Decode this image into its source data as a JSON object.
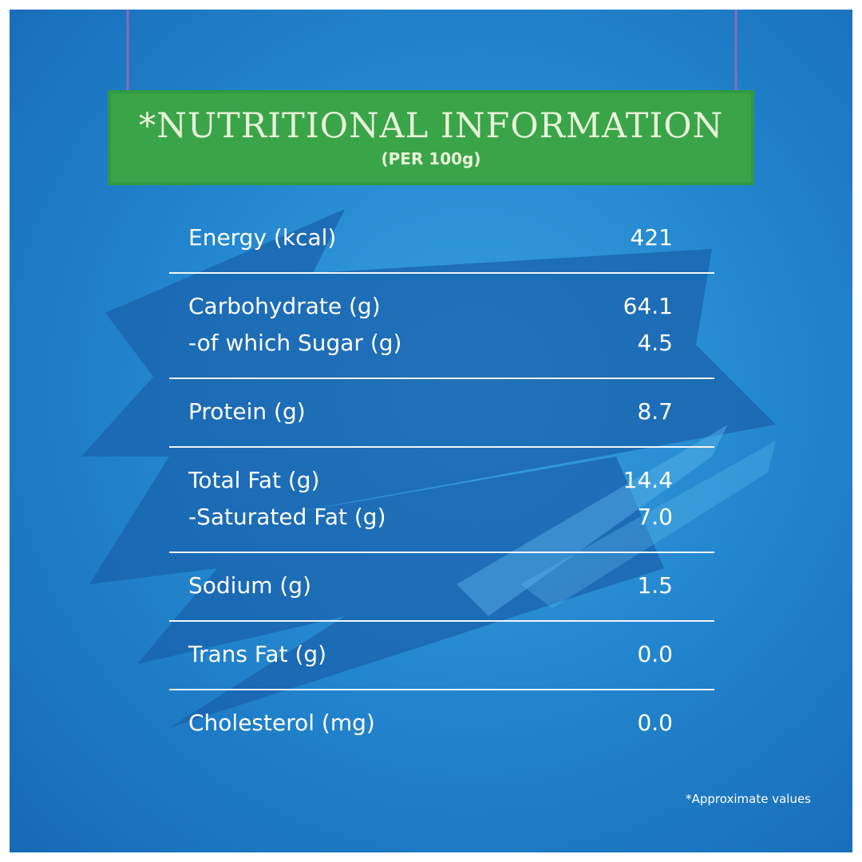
{
  "header": {
    "title": "*NUTRITIONAL INFORMATION",
    "subtitle": "(PER 100g)"
  },
  "table": {
    "groups": [
      {
        "rows": [
          [
            "Energy (kcal)",
            "421"
          ]
        ]
      },
      {
        "rows": [
          [
            "Carbohydrate (g)",
            "64.1"
          ],
          [
            "-of which Sugar (g)",
            "4.5"
          ]
        ]
      },
      {
        "rows": [
          [
            "Protein (g)",
            "8.7"
          ]
        ]
      },
      {
        "rows": [
          [
            "Total Fat (g)",
            "14.4"
          ],
          [
            "-Saturated Fat (g)",
            "7.0"
          ]
        ]
      },
      {
        "rows": [
          [
            "Sodium (g)",
            "1.5"
          ]
        ]
      },
      {
        "rows": [
          [
            "Trans Fat (g)",
            "0.0"
          ]
        ]
      },
      {
        "rows": [
          [
            "Cholesterol (mg)",
            "0.0"
          ]
        ]
      }
    ]
  },
  "footnote": "*Approximate values"
}
